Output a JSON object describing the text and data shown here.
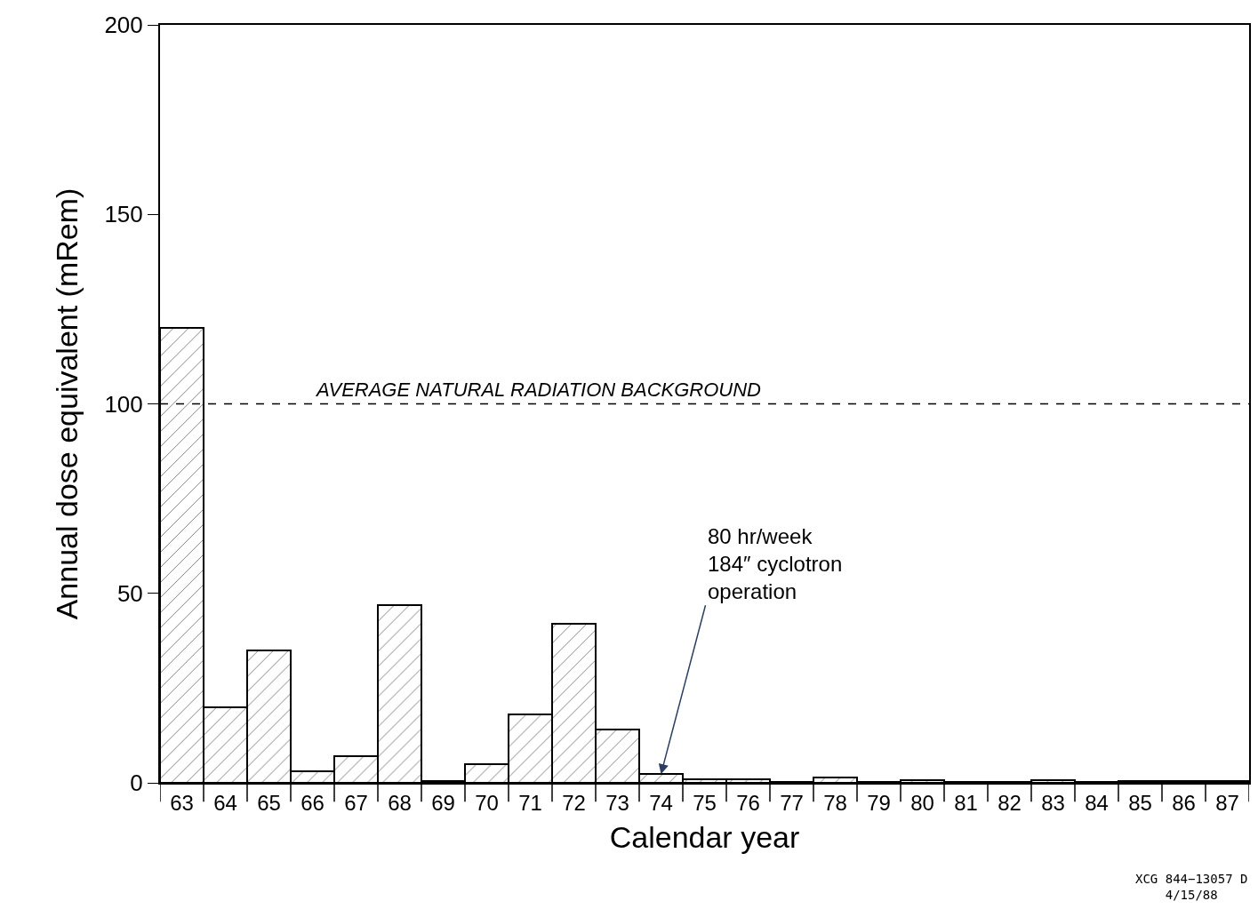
{
  "chart_data": {
    "type": "bar",
    "xlabel": "Calendar year",
    "ylabel": "Annual dose equivalent (mRem)",
    "categories": [
      "63",
      "64",
      "65",
      "66",
      "67",
      "68",
      "69",
      "70",
      "71",
      "72",
      "73",
      "74",
      "75",
      "76",
      "77",
      "78",
      "79",
      "80",
      "81",
      "82",
      "83",
      "84",
      "85",
      "86",
      "87"
    ],
    "values": [
      120,
      20,
      35,
      3,
      7,
      47,
      0.5,
      5,
      18,
      42,
      14,
      2.3,
      1,
      1,
      0.3,
      1.5,
      0.2,
      0.8,
      0.2,
      0.2,
      0.7,
      0.2,
      0.5,
      0.5,
      0.5
    ],
    "color": "#000000",
    "ylim": [
      0,
      200
    ],
    "yticks": [
      0,
      50,
      100,
      150,
      200
    ],
    "legend": false,
    "ref_lines": [
      {
        "axis": "y",
        "value": 100,
        "label": "AVERAGE NATURAL RADIATION BACKGROUND",
        "line_style": "dashed",
        "color": "#000000"
      }
    ],
    "annotations": [
      {
        "text": "80 hr/week\n184″ cyclotron\noperation",
        "x": "74",
        "y": 2.3
      },
      "XCG 844−13057 D\n4/15/88"
    ]
  }
}
